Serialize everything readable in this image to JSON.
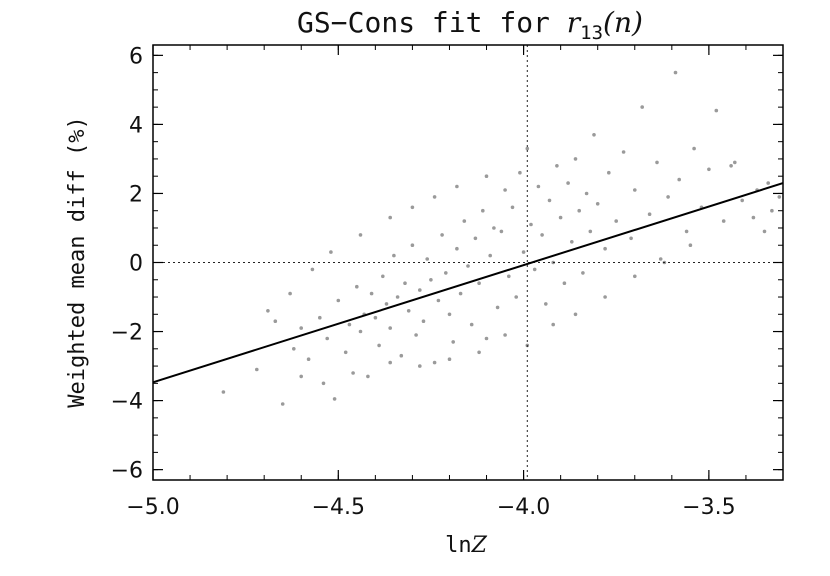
{
  "chart_data": {
    "type": "scatter",
    "title": "GS−Cons fit for r13(n)",
    "title_parts": {
      "prefix": "GS−Cons fit for ",
      "var": "r",
      "sub": "13",
      "args": "(n)"
    },
    "xlabel": "lnZ",
    "xlabel_parts": {
      "prefix": "ln",
      "var": "Z"
    },
    "ylabel": "Weighted mean diff (%)",
    "xlim": [
      -5.0,
      -3.3
    ],
    "ylim": [
      -6.3,
      6.3
    ],
    "xticks": [
      {
        "value": -5.0,
        "label": "−5.0"
      },
      {
        "value": -4.5,
        "label": "−4.5"
      },
      {
        "value": -4.0,
        "label": "−4.0"
      },
      {
        "value": -3.5,
        "label": "−3.5"
      }
    ],
    "yticks": [
      {
        "value": -6,
        "label": "−6"
      },
      {
        "value": -4,
        "label": "−4"
      },
      {
        "value": -2,
        "label": "−2"
      },
      {
        "value": 0,
        "label": "0"
      },
      {
        "value": 2,
        "label": "2"
      },
      {
        "value": 4,
        "label": "4"
      },
      {
        "value": 6,
        "label": "6"
      }
    ],
    "fit_line": {
      "x": [
        -5.0,
        -3.3
      ],
      "y": [
        -3.47,
        2.3
      ]
    },
    "reference_lines": {
      "x": -3.99,
      "y": 0
    },
    "grid": false,
    "colors": {
      "points": "#9a9a9a",
      "line": "#000000",
      "axes": "#000000"
    },
    "series": [
      {
        "points": [
          [
            -4.81,
            -3.75
          ],
          [
            -4.72,
            -3.1
          ],
          [
            -4.65,
            -4.1
          ],
          [
            -4.69,
            -1.4
          ],
          [
            -4.62,
            -2.5
          ],
          [
            -4.6,
            -1.9
          ],
          [
            -4.58,
            -2.8
          ],
          [
            -4.55,
            -1.6
          ],
          [
            -4.53,
            -2.2
          ],
          [
            -4.51,
            -3.95
          ],
          [
            -4.5,
            -1.1
          ],
          [
            -4.48,
            -2.6
          ],
          [
            -4.47,
            -1.8
          ],
          [
            -4.45,
            -0.7
          ],
          [
            -4.44,
            -2.0
          ],
          [
            -4.43,
            -1.5
          ],
          [
            -4.42,
            -3.3
          ],
          [
            -4.41,
            -0.9
          ],
          [
            -4.4,
            -1.6
          ],
          [
            -4.39,
            -2.4
          ],
          [
            -4.38,
            -0.4
          ],
          [
            -4.37,
            -1.2
          ],
          [
            -4.36,
            -1.9
          ],
          [
            -4.35,
            0.2
          ],
          [
            -4.34,
            -1.0
          ],
          [
            -4.33,
            -2.7
          ],
          [
            -4.32,
            -0.6
          ],
          [
            -4.31,
            -1.4
          ],
          [
            -4.3,
            0.5
          ],
          [
            -4.29,
            -2.1
          ],
          [
            -4.28,
            -0.8
          ],
          [
            -4.27,
            -1.7
          ],
          [
            -4.26,
            0.1
          ],
          [
            -4.25,
            -0.5
          ],
          [
            -4.24,
            -2.9
          ],
          [
            -4.23,
            -1.1
          ],
          [
            -4.22,
            0.8
          ],
          [
            -4.21,
            -0.3
          ],
          [
            -4.2,
            -1.5
          ],
          [
            -4.19,
            -2.3
          ],
          [
            -4.18,
            0.4
          ],
          [
            -4.17,
            -0.9
          ],
          [
            -4.16,
            1.2
          ],
          [
            -4.15,
            -0.1
          ],
          [
            -4.14,
            -1.8
          ],
          [
            -4.13,
            0.7
          ],
          [
            -4.12,
            -0.6
          ],
          [
            -4.11,
            1.5
          ],
          [
            -4.1,
            -2.2
          ],
          [
            -4.09,
            0.2
          ],
          [
            -4.08,
            1.0
          ],
          [
            -4.07,
            -1.3
          ],
          [
            -4.06,
            0.9
          ],
          [
            -4.05,
            2.1
          ],
          [
            -4.04,
            -0.4
          ],
          [
            -4.03,
            1.6
          ],
          [
            -4.02,
            -1.0
          ],
          [
            -4.01,
            2.6
          ],
          [
            -4.0,
            0.3
          ],
          [
            -3.99,
            3.3
          ],
          [
            -3.99,
            -2.4
          ],
          [
            -3.98,
            1.1
          ],
          [
            -3.97,
            -0.2
          ],
          [
            -3.96,
            2.2
          ],
          [
            -3.95,
            0.8
          ],
          [
            -3.94,
            -1.2
          ],
          [
            -3.93,
            1.8
          ],
          [
            -3.92,
            0.0
          ],
          [
            -3.91,
            2.8
          ],
          [
            -3.9,
            1.3
          ],
          [
            -3.89,
            -0.6
          ],
          [
            -3.88,
            2.3
          ],
          [
            -3.87,
            0.6
          ],
          [
            -3.86,
            3.0
          ],
          [
            -3.85,
            1.5
          ],
          [
            -3.84,
            -0.3
          ],
          [
            -3.83,
            2.0
          ],
          [
            -3.82,
            0.9
          ],
          [
            -3.81,
            3.7
          ],
          [
            -3.8,
            1.7
          ],
          [
            -3.78,
            0.4
          ],
          [
            -3.77,
            2.6
          ],
          [
            -3.75,
            1.2
          ],
          [
            -3.73,
            3.2
          ],
          [
            -3.71,
            0.7
          ],
          [
            -3.7,
            2.1
          ],
          [
            -3.68,
            4.5
          ],
          [
            -3.66,
            1.4
          ],
          [
            -3.64,
            2.9
          ],
          [
            -3.63,
            0.1
          ],
          [
            -3.61,
            1.9
          ],
          [
            -3.59,
            5.5
          ],
          [
            -3.58,
            2.4
          ],
          [
            -3.56,
            0.9
          ],
          [
            -3.54,
            3.3
          ],
          [
            -3.52,
            1.6
          ],
          [
            -3.5,
            2.7
          ],
          [
            -3.48,
            4.4
          ],
          [
            -3.46,
            1.2
          ],
          [
            -3.44,
            2.8
          ],
          [
            -3.41,
            1.8
          ],
          [
            -3.38,
            1.3
          ],
          [
            -3.35,
            0.9
          ],
          [
            -3.33,
            1.5
          ],
          [
            -3.31,
            1.9
          ],
          [
            -3.34,
            2.3
          ],
          [
            -3.37,
            2.1
          ],
          [
            -3.43,
            2.9
          ],
          [
            -4.05,
            -2.1
          ],
          [
            -4.12,
            -2.6
          ],
          [
            -4.2,
            -2.8
          ],
          [
            -4.28,
            -3.0
          ],
          [
            -4.36,
            -2.9
          ],
          [
            -4.46,
            -3.2
          ],
          [
            -4.54,
            -3.5
          ],
          [
            -4.6,
            -3.3
          ],
          [
            -3.92,
            -1.8
          ],
          [
            -3.86,
            -1.5
          ],
          [
            -3.78,
            -1.0
          ],
          [
            -3.7,
            -0.4
          ],
          [
            -3.62,
            0.0
          ],
          [
            -3.55,
            0.5
          ],
          [
            -4.36,
            1.3
          ],
          [
            -4.3,
            1.6
          ],
          [
            -4.24,
            1.9
          ],
          [
            -4.18,
            2.2
          ],
          [
            -4.1,
            2.5
          ],
          [
            -4.44,
            0.8
          ],
          [
            -4.52,
            0.3
          ],
          [
            -4.57,
            -0.2
          ],
          [
            -4.63,
            -0.9
          ],
          [
            -4.67,
            -1.7
          ]
        ]
      }
    ]
  }
}
